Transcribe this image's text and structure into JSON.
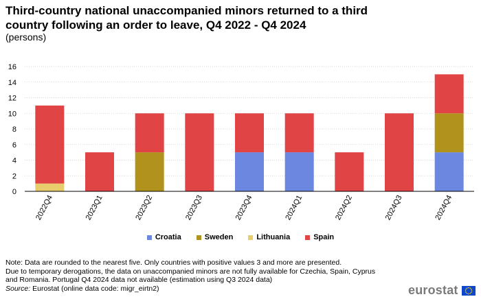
{
  "chart_data": {
    "type": "bar",
    "stacked": true,
    "title": "Third-country national unaccompanied minors returned to a third country following an order to leave, Q4 2022 - Q4 2024",
    "subtitle": "(persons)",
    "categories": [
      "2022Q4",
      "2023Q1",
      "2023Q2",
      "2023Q3",
      "2023Q4",
      "2024Q1",
      "2024Q2",
      "2024Q3",
      "2024Q4"
    ],
    "series": [
      {
        "name": "Croatia",
        "color": "#6b87e0",
        "values": [
          0,
          0,
          0,
          0,
          5,
          5,
          0,
          0,
          5
        ]
      },
      {
        "name": "Sweden",
        "color": "#b0921c",
        "values": [
          0,
          0,
          5,
          0,
          0,
          0,
          0,
          0,
          5
        ]
      },
      {
        "name": "Lithuania",
        "color": "#e8cd6c",
        "values": [
          1,
          0,
          0,
          0,
          0,
          0,
          0,
          0,
          0
        ]
      },
      {
        "name": "Spain",
        "color": "#e04444",
        "values": [
          10,
          5,
          5,
          10,
          5,
          5,
          5,
          10,
          5
        ]
      }
    ],
    "yticks": [
      0,
      2,
      4,
      6,
      8,
      10,
      12,
      14,
      16
    ],
    "ylim": [
      0,
      16
    ],
    "grid": true,
    "legend_position": "bottom"
  },
  "notes": [
    "Note: Data are rounded to the nearest five. Only countries with positive values 3 and more are presented.",
    "Due to temporary derogations, the data on unaccompanied minors are not fully available for Czechia, Spain, Cyprus",
    "and Romania. Portugal Q4 2024 data not available (estimation using Q3 2024 data)"
  ],
  "source_label": "Source:",
  "source_text": " Eurostat (online data code: migr_eirtn2)",
  "logo_text": "eurostat"
}
